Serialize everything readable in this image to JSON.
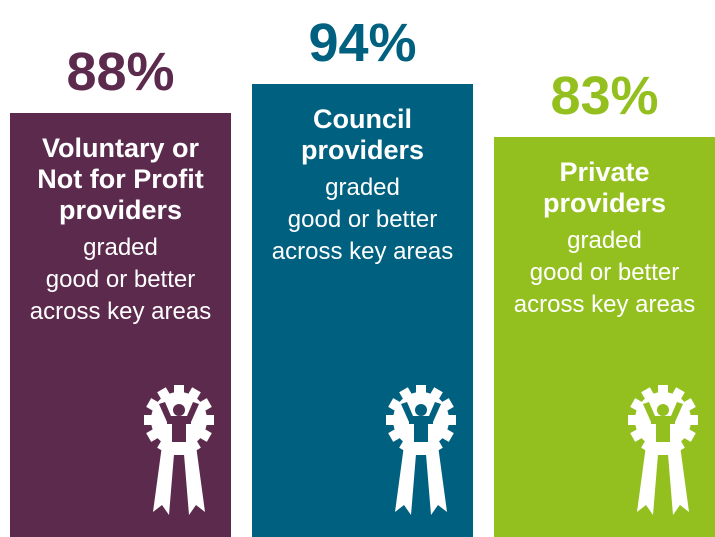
{
  "chart_data": {
    "type": "bar",
    "categories": [
      "Voluntary or\nNot for Profit\nproviders",
      "Council\nproviders",
      "Private\nproviders"
    ],
    "values": [
      88,
      94,
      83
    ],
    "value_labels": [
      "88%",
      "94%",
      "83%"
    ],
    "colors": [
      "#5b2a4d",
      "#00607f",
      "#93c01f"
    ],
    "description": "graded\ngood or better\nacross key areas"
  }
}
